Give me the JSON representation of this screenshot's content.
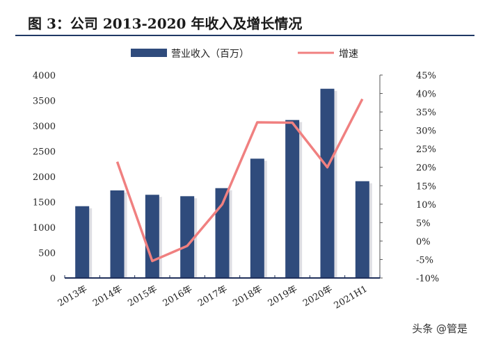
{
  "title": "图 3：公司 2013-2020 年收入及增长情况",
  "watermark": "头条 @管是",
  "chart_data": {
    "type": "bar+line",
    "categories": [
      "2013年",
      "2014年",
      "2015年",
      "2016年",
      "2017年",
      "2018年",
      "2019年",
      "2020年",
      "2021H1"
    ],
    "series": [
      {
        "name": "营业收入（百万）",
        "type": "bar",
        "axis": "left",
        "color": "#2f4b7c",
        "values": [
          1415,
          1726,
          1640,
          1612,
          1771,
          2352,
          3114,
          3730,
          1908
        ]
      },
      {
        "name": "增速",
        "type": "line",
        "axis": "right",
        "color": "#f08080",
        "values": [
          null,
          21.5,
          -5.4,
          -1.3,
          10.0,
          32.2,
          32.1,
          20.0,
          38.5
        ]
      }
    ],
    "left_axis": {
      "ylim": [
        0,
        4000
      ],
      "ticks": [
        "0",
        "500",
        "1000",
        "1500",
        "2000",
        "2500",
        "3000",
        "3500",
        "4000"
      ]
    },
    "right_axis": {
      "ylim": [
        -10,
        45
      ],
      "ticks": [
        "-10%",
        "-5%",
        "0%",
        "5%",
        "10%",
        "15%",
        "20%",
        "25%",
        "30%",
        "35%",
        "40%",
        "45%"
      ]
    },
    "legend_position": "top",
    "grid": false
  }
}
